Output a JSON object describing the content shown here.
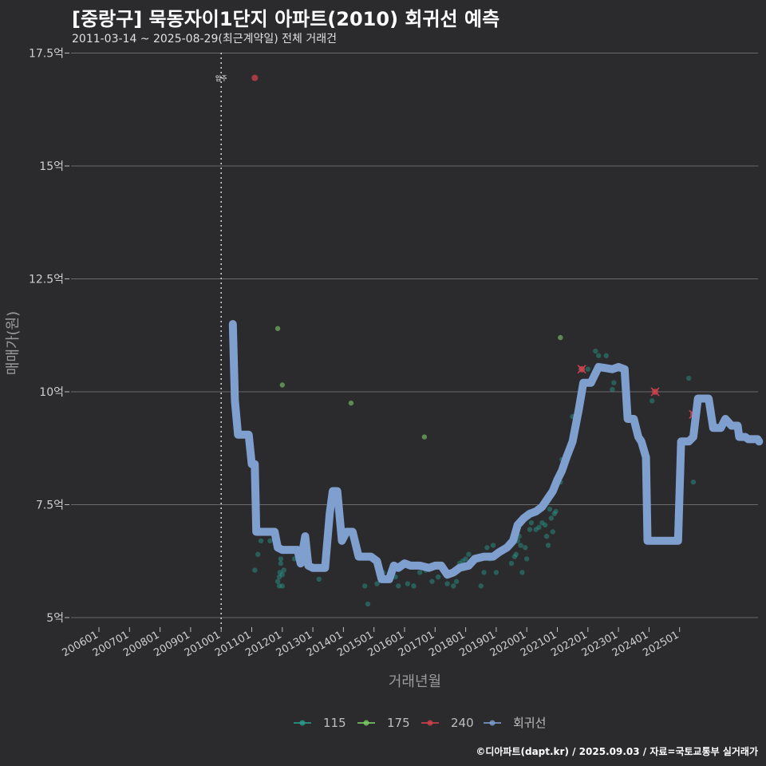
{
  "chart_data": {
    "type": "scatter",
    "title": "[중랑구] 묵동자이1단지 아파트(2010) 회귀선 예측",
    "subtitle": "2011-03-14 ~ 2025-08-29(최근계약일) 전체 거래건",
    "xlabel": "거래년월",
    "ylabel": "매매가(원)",
    "ylim": [
      4.8,
      17.5
    ],
    "y_ticks": [
      {
        "value": 5,
        "label": "5억"
      },
      {
        "value": 7.5,
        "label": "7.5억"
      },
      {
        "value": 10,
        "label": "10억"
      },
      {
        "value": 12.5,
        "label": "12.5억"
      },
      {
        "value": 15,
        "label": "15억"
      },
      {
        "value": 17.5,
        "label": "17.5억"
      }
    ],
    "x_ticks": [
      {
        "value": 2006,
        "label": "200601"
      },
      {
        "value": 2007,
        "label": "200701"
      },
      {
        "value": 2008,
        "label": "200801"
      },
      {
        "value": 2009,
        "label": "200901"
      },
      {
        "value": 2010,
        "label": "201001"
      },
      {
        "value": 2011,
        "label": "201101"
      },
      {
        "value": 2012,
        "label": "201201"
      },
      {
        "value": 2013,
        "label": "201301"
      },
      {
        "value": 2014,
        "label": "201401"
      },
      {
        "value": 2015,
        "label": "201501"
      },
      {
        "value": 2016,
        "label": "201601"
      },
      {
        "value": 2017,
        "label": "201701"
      },
      {
        "value": 2018,
        "label": "201801"
      },
      {
        "value": 2019,
        "label": "201901"
      },
      {
        "value": 2020,
        "label": "202001"
      },
      {
        "value": 2021,
        "label": "202101"
      },
      {
        "value": 2022,
        "label": "202201"
      },
      {
        "value": 2023,
        "label": "202301"
      },
      {
        "value": 2024,
        "label": "202401"
      },
      {
        "value": 2025,
        "label": "202501"
      }
    ],
    "grid": true,
    "legend_position": "bottom",
    "event_line": {
      "x": 2010.0,
      "label": "입주"
    },
    "colors": {
      "115": "#2a9d8f",
      "175": "#7ccc6a",
      "240": "#d1414d",
      "회귀선": "#7f9fcf"
    },
    "series": [
      {
        "name": "115",
        "points": [
          [
            2011.1,
            6.05
          ],
          [
            2011.2,
            6.4
          ],
          [
            2011.3,
            6.7
          ],
          [
            2011.6,
            6.7
          ],
          [
            2011.85,
            5.8
          ],
          [
            2011.9,
            5.9
          ],
          [
            2011.9,
            5.7
          ],
          [
            2011.92,
            6.0
          ],
          [
            2011.95,
            6.2
          ],
          [
            2011.95,
            6.3
          ],
          [
            2012.0,
            5.7
          ],
          [
            2012.0,
            5.95
          ],
          [
            2012.05,
            6.05
          ],
          [
            2012.4,
            6.3
          ],
          [
            2012.6,
            6.2
          ],
          [
            2013.2,
            5.85
          ],
          [
            2014.7,
            5.7
          ],
          [
            2014.8,
            5.3
          ],
          [
            2015.1,
            5.75
          ],
          [
            2015.3,
            6.0
          ],
          [
            2015.7,
            5.9
          ],
          [
            2015.8,
            5.7
          ],
          [
            2016.1,
            5.75
          ],
          [
            2016.3,
            5.7
          ],
          [
            2016.5,
            6.0
          ],
          [
            2016.7,
            6.05
          ],
          [
            2016.9,
            5.8
          ],
          [
            2017.1,
            5.9
          ],
          [
            2017.3,
            6.0
          ],
          [
            2017.4,
            5.75
          ],
          [
            2017.6,
            5.7
          ],
          [
            2017.7,
            5.8
          ],
          [
            2017.8,
            6.2
          ],
          [
            2017.9,
            6.25
          ],
          [
            2018.0,
            6.3
          ],
          [
            2018.1,
            6.4
          ],
          [
            2018.3,
            6.25
          ],
          [
            2018.5,
            5.7
          ],
          [
            2018.6,
            6.0
          ],
          [
            2018.7,
            6.55
          ],
          [
            2018.8,
            6.3
          ],
          [
            2018.9,
            6.6
          ],
          [
            2019.0,
            6.0
          ],
          [
            2019.1,
            6.45
          ],
          [
            2019.3,
            6.5
          ],
          [
            2019.5,
            6.2
          ],
          [
            2019.6,
            6.35
          ],
          [
            2019.65,
            6.4
          ],
          [
            2019.7,
            6.7
          ],
          [
            2019.75,
            6.8
          ],
          [
            2019.8,
            6.6
          ],
          [
            2019.85,
            6.0
          ],
          [
            2019.95,
            6.55
          ],
          [
            2020.0,
            6.3
          ],
          [
            2020.1,
            6.95
          ],
          [
            2020.15,
            7.1
          ],
          [
            2020.3,
            6.95
          ],
          [
            2020.4,
            7.0
          ],
          [
            2020.5,
            7.1
          ],
          [
            2020.6,
            7.05
          ],
          [
            2020.65,
            6.8
          ],
          [
            2020.7,
            6.6
          ],
          [
            2020.75,
            7.4
          ],
          [
            2020.8,
            7.2
          ],
          [
            2020.85,
            6.9
          ],
          [
            2020.9,
            7.3
          ],
          [
            2020.95,
            7.35
          ],
          [
            2021.1,
            8.0
          ],
          [
            2021.15,
            8.5
          ],
          [
            2021.3,
            8.5
          ],
          [
            2021.5,
            9.45
          ],
          [
            2021.8,
            10.5
          ],
          [
            2022.0,
            10.5
          ],
          [
            2022.25,
            10.9
          ],
          [
            2022.35,
            10.8
          ],
          [
            2022.6,
            10.8
          ],
          [
            2022.8,
            10.05
          ],
          [
            2022.85,
            10.2
          ],
          [
            2024.1,
            9.8
          ],
          [
            2025.0,
            7.3
          ],
          [
            2025.3,
            10.3
          ],
          [
            2025.45,
            8.0
          ]
        ]
      },
      {
        "name": "175",
        "points": [
          [
            2011.85,
            11.4
          ],
          [
            2012.0,
            10.15
          ],
          [
            2014.25,
            9.75
          ],
          [
            2016.65,
            9.0
          ],
          [
            2021.1,
            11.2
          ]
        ]
      },
      {
        "name": "240",
        "points": [
          [
            2011.1,
            16.95
          ],
          [
            2021.8,
            10.5
          ],
          [
            2024.2,
            10.0
          ],
          [
            2025.45,
            9.5
          ]
        ]
      },
      {
        "name": "회귀선",
        "points": [
          [
            2010.38,
            11.5
          ],
          [
            2010.45,
            9.8
          ],
          [
            2010.55,
            9.05
          ],
          [
            2010.9,
            9.05
          ],
          [
            2011.0,
            8.4
          ],
          [
            2011.1,
            8.4
          ],
          [
            2011.15,
            6.9
          ],
          [
            2011.6,
            6.9
          ],
          [
            2011.75,
            6.9
          ],
          [
            2011.85,
            6.55
          ],
          [
            2012.0,
            6.5
          ],
          [
            2012.3,
            6.5
          ],
          [
            2012.5,
            6.5
          ],
          [
            2012.6,
            6.2
          ],
          [
            2012.75,
            6.8
          ],
          [
            2012.85,
            6.15
          ],
          [
            2013.0,
            6.1
          ],
          [
            2013.4,
            6.1
          ],
          [
            2013.55,
            7.3
          ],
          [
            2013.65,
            7.8
          ],
          [
            2013.8,
            7.8
          ],
          [
            2013.95,
            6.7
          ],
          [
            2014.1,
            6.9
          ],
          [
            2014.3,
            6.9
          ],
          [
            2014.5,
            6.35
          ],
          [
            2014.9,
            6.35
          ],
          [
            2015.1,
            6.25
          ],
          [
            2015.25,
            5.85
          ],
          [
            2015.5,
            5.85
          ],
          [
            2015.65,
            6.15
          ],
          [
            2015.8,
            6.1
          ],
          [
            2016.0,
            6.2
          ],
          [
            2016.2,
            6.15
          ],
          [
            2016.5,
            6.15
          ],
          [
            2016.8,
            6.1
          ],
          [
            2017.0,
            6.15
          ],
          [
            2017.2,
            6.15
          ],
          [
            2017.4,
            5.95
          ],
          [
            2017.6,
            6.0
          ],
          [
            2017.8,
            6.1
          ],
          [
            2018.1,
            6.15
          ],
          [
            2018.3,
            6.3
          ],
          [
            2018.6,
            6.35
          ],
          [
            2018.9,
            6.35
          ],
          [
            2019.1,
            6.45
          ],
          [
            2019.35,
            6.55
          ],
          [
            2019.55,
            6.7
          ],
          [
            2019.7,
            7.05
          ],
          [
            2019.9,
            7.2
          ],
          [
            2020.1,
            7.3
          ],
          [
            2020.3,
            7.35
          ],
          [
            2020.5,
            7.45
          ],
          [
            2020.7,
            7.65
          ],
          [
            2020.85,
            7.8
          ],
          [
            2021.0,
            8.05
          ],
          [
            2021.15,
            8.25
          ],
          [
            2021.3,
            8.55
          ],
          [
            2021.5,
            8.9
          ],
          [
            2021.7,
            9.6
          ],
          [
            2021.85,
            10.2
          ],
          [
            2022.1,
            10.2
          ],
          [
            2022.35,
            10.55
          ],
          [
            2022.8,
            10.5
          ],
          [
            2023.0,
            10.55
          ],
          [
            2023.2,
            10.5
          ],
          [
            2023.3,
            9.4
          ],
          [
            2023.5,
            9.4
          ],
          [
            2023.65,
            9.0
          ],
          [
            2023.75,
            8.9
          ],
          [
            2023.9,
            8.55
          ],
          [
            2023.95,
            6.7
          ],
          [
            2024.5,
            6.7
          ],
          [
            2024.95,
            6.7
          ],
          [
            2025.05,
            8.9
          ],
          [
            2025.3,
            8.9
          ],
          [
            2025.45,
            9.0
          ],
          [
            2025.6,
            9.85
          ],
          [
            2025.95,
            9.85
          ],
          [
            2026.1,
            9.2
          ],
          [
            2026.35,
            9.2
          ],
          [
            2026.5,
            9.4
          ],
          [
            2026.7,
            9.25
          ],
          [
            2026.9,
            9.25
          ],
          [
            2026.95,
            9.0
          ],
          [
            2027.15,
            9.0
          ],
          [
            2027.25,
            8.95
          ],
          [
            2027.55,
            8.95
          ],
          [
            2027.6,
            8.9
          ]
        ]
      }
    ]
  },
  "footer": {
    "credit": "©디아파트(dapt.kr) / 2025.09.03 / 자료=국토교통부 실거래가"
  }
}
